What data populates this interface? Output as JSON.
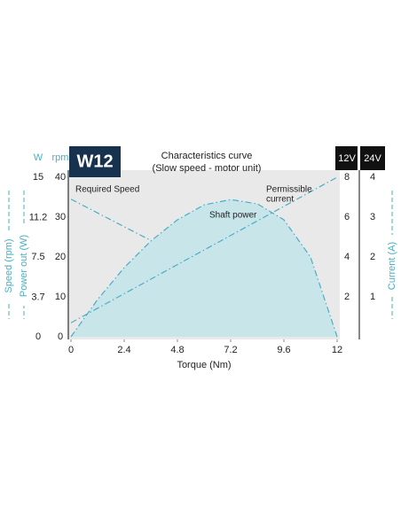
{
  "chart_data": {
    "type": "line",
    "badge": "W12",
    "title": "Characteristics curve",
    "subtitle": "(Slow speed - motor unit)",
    "xlabel": "Torque (Nm)",
    "xlim": [
      0,
      12
    ],
    "xticks": [
      0,
      2.4,
      4.8,
      7.2,
      9.6,
      12
    ],
    "y_unit": "rpm",
    "ylabel": "Speed (rpm)",
    "ylim": [
      0,
      40
    ],
    "yticks": [
      0,
      10,
      20,
      30,
      40
    ],
    "y2_unit": "12V",
    "y2label": "Current (A)",
    "y2lim": [
      0,
      8
    ],
    "y2ticks": [
      2,
      4,
      6,
      8
    ],
    "y3_unit": "W",
    "y3label": "Power out (W)",
    "y3lim": [
      0,
      15
    ],
    "y3ticks": [
      0,
      3.7,
      7.5,
      11.2,
      15
    ],
    "y4_unit": "24V",
    "y4lim": [
      0,
      4
    ],
    "y4ticks": [
      1,
      2,
      3,
      4
    ],
    "series": [
      {
        "name": "Required Speed",
        "axis": "y",
        "color": "#4aaec4",
        "x": [
          0,
          12
        ],
        "values": [
          34.5,
          0
        ]
      },
      {
        "name": "Shaft power",
        "axis": "y3",
        "color": "#4aaec4",
        "fill": "#c8e5ea",
        "x": [
          0,
          1.2,
          2.4,
          3.6,
          4.8,
          6,
          7.2,
          8.4,
          9.6,
          10.8,
          12
        ],
        "values": [
          0,
          3.5,
          6.5,
          9,
          11,
          12.4,
          12.9,
          12.5,
          11,
          7.5,
          0
        ]
      },
      {
        "name": "Permissible current",
        "name_lines": [
          "Permissible",
          "current"
        ],
        "axis": "y2",
        "color": "#4aaec4",
        "x": [
          0,
          12
        ],
        "values": [
          0.7,
          8
        ]
      }
    ]
  }
}
